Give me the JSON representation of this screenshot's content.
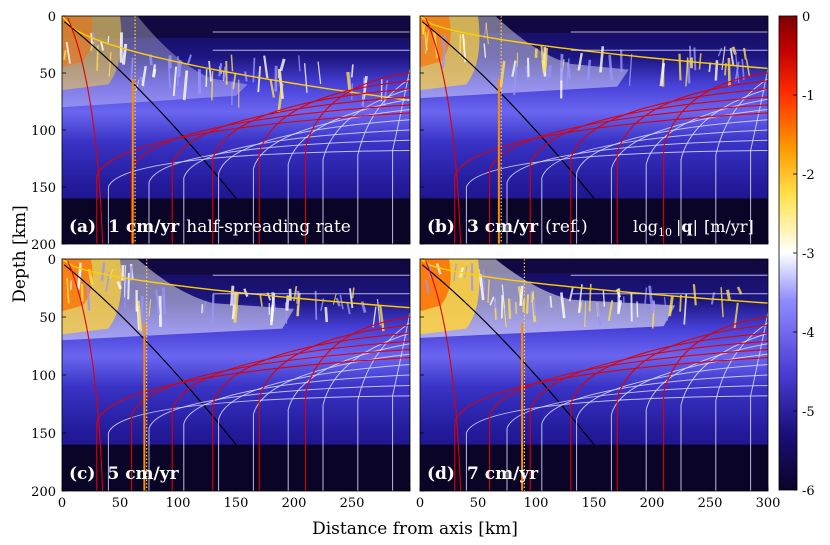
{
  "chart_data": {
    "type": "heatmap",
    "xlabel": "Distance from axis [km]",
    "ylabel": "Depth [km]",
    "xlim": [
      0,
      300
    ],
    "ylim": [
      0,
      200
    ],
    "x_ticks": [
      0,
      50,
      100,
      150,
      200,
      250,
      300
    ],
    "y_ticks": [
      0,
      50,
      100,
      150,
      200
    ],
    "colorbar": {
      "label": "log10 |q| [m/yr]",
      "range": [
        -6,
        0
      ],
      "ticks": [
        0,
        -1,
        -2,
        -3,
        -4,
        -5,
        -6
      ],
      "colors": [
        "#0b0426",
        "#1a0f7a",
        "#4a3fd6",
        "#8f8cff",
        "#ffffff",
        "#ffe24d",
        "#ff9a00",
        "#ff2a00",
        "#c00000",
        "#800000"
      ]
    },
    "panels": [
      {
        "id": "a",
        "label": "(a)",
        "rate": "1 cm/yr",
        "note": "half-spreading rate",
        "marker_x": 63,
        "front_depth_at_300": 74,
        "melt_top": 55,
        "melt_bottom": 80,
        "intensity": 0.55
      },
      {
        "id": "b",
        "label": "(b)",
        "rate": "3 cm/yr",
        "note": "(ref.)",
        "marker_x": 70,
        "front_depth_at_300": 46,
        "melt_top": 42,
        "melt_bottom": 72,
        "intensity": 0.75
      },
      {
        "id": "c",
        "label": "(c)",
        "rate": "5 cm/yr",
        "note": "",
        "marker_x": 73,
        "front_depth_at_300": 42,
        "melt_top": 38,
        "melt_bottom": 70,
        "intensity": 0.85
      },
      {
        "id": "d",
        "label": "(d)",
        "rate": "7 cm/yr",
        "note": "",
        "marker_x": 90,
        "front_depth_at_300": 38,
        "melt_top": 35,
        "melt_bottom": 68,
        "intensity": 0.95
      }
    ],
    "legend_text": {
      "log": "log",
      "sub": "10",
      "q": "q",
      "unit": "[m/yr]"
    }
  }
}
